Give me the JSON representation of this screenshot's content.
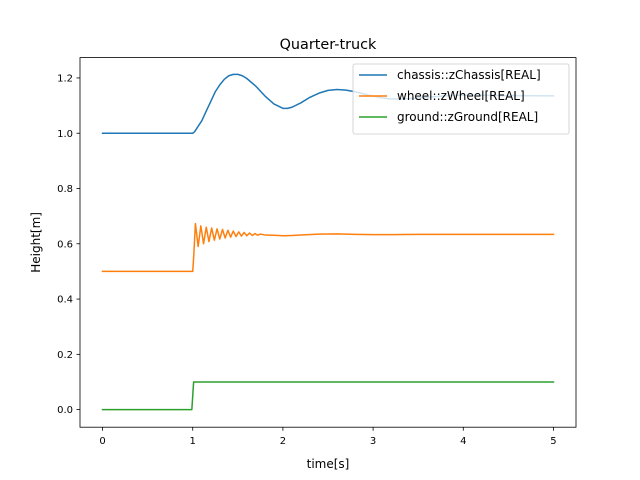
{
  "chart_data": {
    "type": "line",
    "title": "Quarter-truck",
    "xlabel": "time[s]",
    "ylabel": "Height[m]",
    "xlim": [
      -0.25,
      5.25
    ],
    "ylim": [
      -0.0636,
      1.2736
    ],
    "xticks": [
      0,
      1,
      2,
      3,
      4,
      5
    ],
    "xtick_labels": [
      "0",
      "1",
      "2",
      "3",
      "4",
      "5"
    ],
    "yticks": [
      0.0,
      0.2,
      0.4,
      0.6,
      0.8,
      1.0,
      1.2
    ],
    "ytick_labels": [
      "0.0",
      "0.2",
      "0.4",
      "0.6",
      "0.8",
      "1.0",
      "1.2"
    ],
    "grid": false,
    "legend_position": "top-right",
    "series": [
      {
        "name": "chassis::zChassis[REAL]",
        "color": "#1f77b4",
        "x": [
          0,
          1.0,
          1.02,
          1.05,
          1.1,
          1.15,
          1.2,
          1.25,
          1.3,
          1.35,
          1.4,
          1.45,
          1.5,
          1.55,
          1.6,
          1.7,
          1.8,
          1.9,
          2.0,
          2.05,
          2.1,
          2.2,
          2.3,
          2.4,
          2.5,
          2.6,
          2.7,
          2.8,
          2.9,
          3.0,
          3.1,
          3.2,
          3.4,
          3.6,
          3.8,
          4.0,
          4.5,
          5.0
        ],
        "y": [
          1.0,
          1.0,
          1.005,
          1.02,
          1.045,
          1.08,
          1.115,
          1.15,
          1.175,
          1.195,
          1.208,
          1.213,
          1.213,
          1.208,
          1.198,
          1.17,
          1.135,
          1.106,
          1.09,
          1.09,
          1.094,
          1.11,
          1.13,
          1.145,
          1.155,
          1.158,
          1.156,
          1.15,
          1.142,
          1.134,
          1.128,
          1.124,
          1.125,
          1.13,
          1.135,
          1.138,
          1.136,
          1.135
        ]
      },
      {
        "name": "wheel::zWheel[REAL]",
        "color": "#ff7f0e",
        "x": [
          0,
          1.0,
          1.01,
          1.03,
          1.06,
          1.09,
          1.12,
          1.15,
          1.18,
          1.21,
          1.24,
          1.27,
          1.3,
          1.33,
          1.36,
          1.39,
          1.42,
          1.45,
          1.48,
          1.51,
          1.54,
          1.57,
          1.6,
          1.63,
          1.66,
          1.69,
          1.72,
          1.75,
          1.8,
          1.9,
          2.0,
          2.1,
          2.2,
          2.4,
          2.6,
          2.8,
          3.0,
          3.2,
          3.5,
          4.0,
          4.5,
          5.0
        ],
        "y": [
          0.5,
          0.5,
          0.55,
          0.673,
          0.59,
          0.665,
          0.6,
          0.66,
          0.608,
          0.657,
          0.613,
          0.654,
          0.617,
          0.652,
          0.621,
          0.649,
          0.624,
          0.646,
          0.626,
          0.643,
          0.628,
          0.641,
          0.629,
          0.639,
          0.63,
          0.637,
          0.631,
          0.635,
          0.632,
          0.631,
          0.629,
          0.63,
          0.632,
          0.635,
          0.636,
          0.634,
          0.633,
          0.633,
          0.634,
          0.634,
          0.634,
          0.634
        ]
      },
      {
        "name": "ground::zGround[REAL]",
        "color": "#2ca02c",
        "x": [
          0,
          0.99,
          1.0,
          1.01,
          5.0
        ],
        "y": [
          0.0,
          0.0,
          0.05,
          0.1,
          0.1
        ]
      }
    ]
  }
}
